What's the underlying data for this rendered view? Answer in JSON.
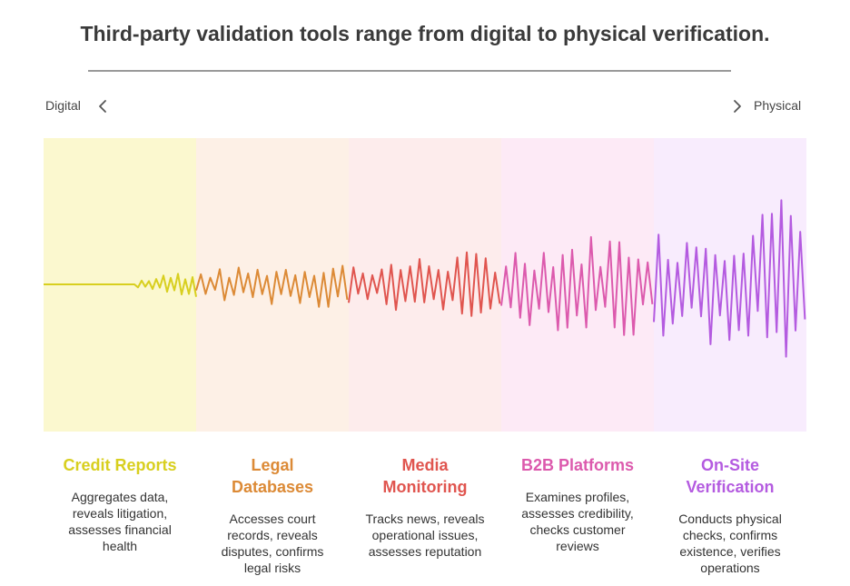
{
  "title": "Third-party validation tools range from digital to physical verification.",
  "axis": {
    "left_label": "Digital",
    "right_label": "Physical",
    "left_icon": "chevron-left-icon",
    "right_icon": "chevron-right-icon"
  },
  "stages": [
    {
      "title_lines": [
        "Credit Reports"
      ],
      "desc_lines": [
        "Aggregates data,",
        "reveals litigation,",
        "assesses financial",
        "health"
      ],
      "color": "#d8cf1f",
      "band": "#fbf8cf"
    },
    {
      "title_lines": [
        "Legal",
        "Databases"
      ],
      "desc_lines": [
        "Accesses court",
        "records, reveals",
        "disputes, confirms",
        "legal risks"
      ],
      "color": "#dc8a36",
      "band": "#fdf0e6"
    },
    {
      "title_lines": [
        "Media",
        "Monitoring"
      ],
      "desc_lines": [
        "Tracks news, reveals",
        "operational issues,",
        "assesses reputation"
      ],
      "color": "#e0554f",
      "band": "#fdecec"
    },
    {
      "title_lines": [
        "B2B Platforms"
      ],
      "desc_lines": [
        "Examines profiles,",
        "assesses credibility,",
        "checks customer",
        "reviews"
      ],
      "color": "#dc5aad",
      "band": "#fdeaf6"
    },
    {
      "title_lines": [
        "On-Site",
        "Verification"
      ],
      "desc_lines": [
        "Conducts physical",
        "checks, confirms",
        "existence, verifies",
        "operations"
      ],
      "color": "#b45be0",
      "band": "#f8ecfd"
    }
  ]
}
